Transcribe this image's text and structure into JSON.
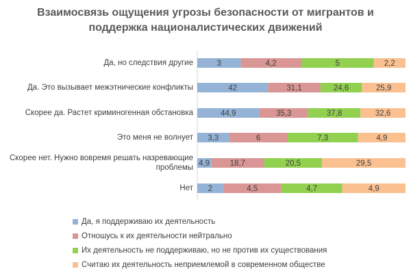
{
  "chart_data": {
    "type": "bar",
    "orientation": "horizontal",
    "stacked": true,
    "title_lines": [
      "Взаимосвязь ощущения угрозы безопасности от мигрантов и",
      "поддержка националистических движений"
    ],
    "categories": [
      "Да, но следствия другие",
      "Да. Это вызывает межэтнические конфликты",
      "Скорее да. Растет криминогенная обстановка",
      "Это меня не волнует",
      "Скорее нет. Нужно вовремя решать назревающие проблемы",
      "Нет"
    ],
    "series": [
      {
        "name": "Да, я поддерживаю их деятельность",
        "color": "#95b3d7",
        "values": [
          3,
          42,
          44.9,
          3.3,
          4.9,
          2
        ],
        "labels": [
          "3",
          "42",
          "44,9",
          "3,3",
          "4,9",
          "2"
        ]
      },
      {
        "name": "Отношусь к их деятельности нейтрально",
        "color": "#d99694",
        "values": [
          4.2,
          31.1,
          35.3,
          6,
          18.7,
          4.5
        ],
        "labels": [
          "4,2",
          "31,1",
          "35,3",
          "6",
          "18,7",
          "4,5"
        ]
      },
      {
        "name": "Их деятельность не поддерживаю, но не против их существования",
        "color": "#92d050",
        "values": [
          5,
          24.6,
          37.8,
          7.3,
          20.5,
          4.7
        ],
        "labels": [
          "5",
          "24,6",
          "37,8",
          "7,3",
          "20,5",
          "4,7"
        ]
      },
      {
        "name": "Считаю их деятельность неприемлемой в современном обществе",
        "color": "#fac090",
        "values": [
          2.2,
          25.9,
          32.6,
          4.9,
          29.5,
          4.9
        ],
        "labels": [
          "2,2",
          "25,9",
          "32,6",
          "4,9",
          "29,5",
          "4,9"
        ]
      }
    ],
    "normalized_100_percent": true,
    "grid": false,
    "legend_position": "bottom-left"
  }
}
